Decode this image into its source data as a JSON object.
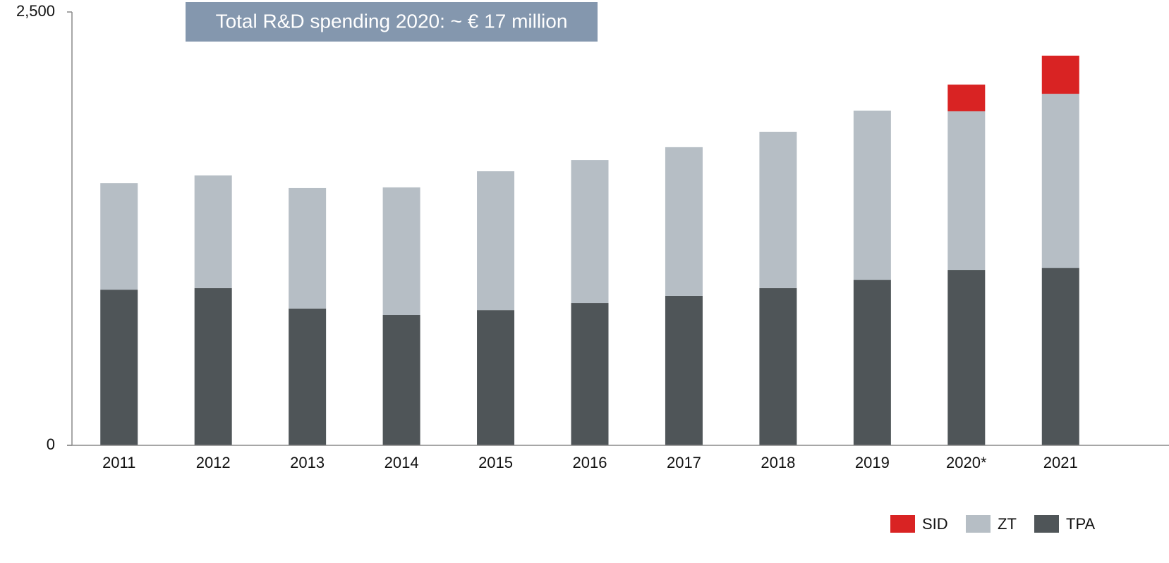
{
  "chart_data": {
    "type": "stacked_bar",
    "annotation": "Total R&D spending 2020: ~ € 17 million",
    "categories": [
      "2011",
      "2012",
      "2013",
      "2014",
      "2015",
      "2016",
      "2017",
      "2018",
      "2019",
      "2020*",
      "2021"
    ],
    "series": [
      {
        "name": "TPA",
        "color": "#4f5558",
        "values": [
          898,
          907,
          789,
          752,
          780,
          821,
          862,
          907,
          955,
          1012,
          1024
        ]
      },
      {
        "name": "ZT",
        "color": "#b6bec5",
        "values": [
          614,
          650,
          695,
          736,
          801,
          825,
          858,
          902,
          976,
          915,
          1004
        ]
      },
      {
        "name": "SID",
        "color": "#d92323",
        "values": [
          null,
          null,
          null,
          null,
          null,
          null,
          null,
          null,
          null,
          154,
          220
        ]
      }
    ],
    "ylim": [
      0,
      2500
    ],
    "yticks": [
      0,
      {
        "value": 2500,
        "label": "2,500"
      }
    ],
    "legend": "bottom-right"
  }
}
